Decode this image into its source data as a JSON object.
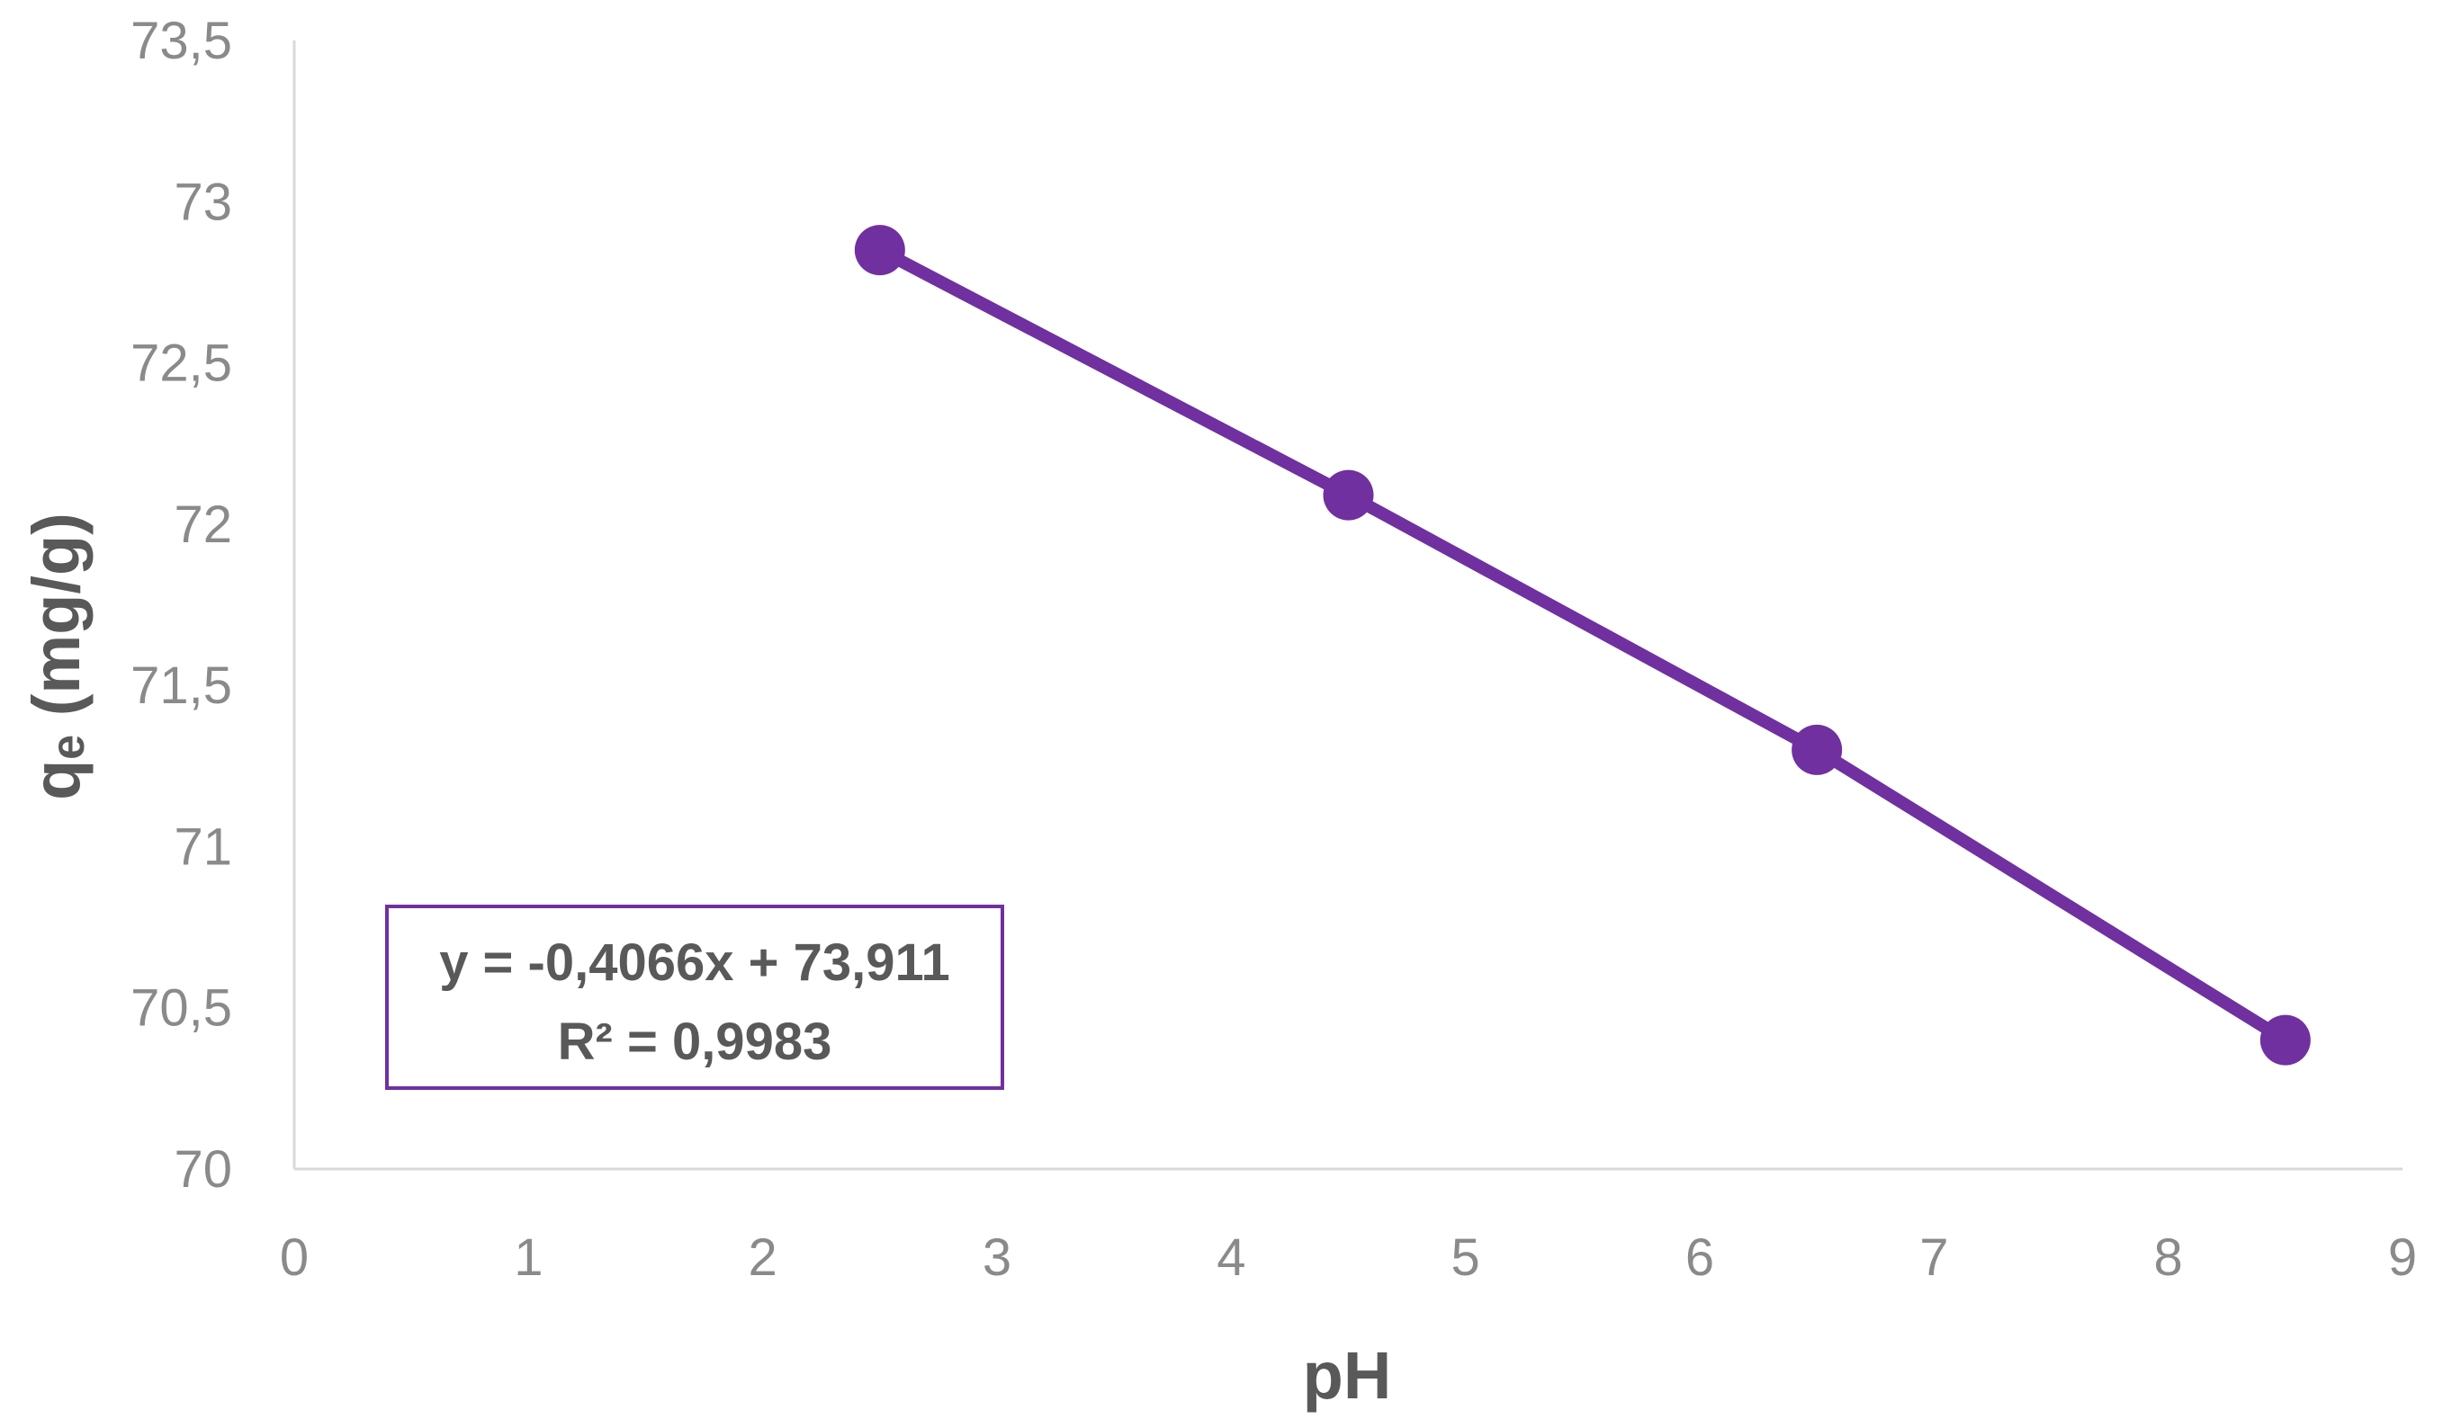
{
  "chart_data": {
    "type": "scatter",
    "title": "",
    "xlabel": "pH",
    "ylabel": "qₑ (mg/g)",
    "xlim": [
      0,
      9
    ],
    "ylim": [
      70,
      73.5
    ],
    "x_ticks": [
      0,
      1,
      2,
      3,
      4,
      5,
      6,
      7,
      8,
      9
    ],
    "y_ticks": [
      70,
      70.5,
      71,
      71.5,
      72,
      72.5,
      73,
      73.5
    ],
    "x_tick_labels": [
      "0",
      "1",
      "2",
      "3",
      "4",
      "5",
      "6",
      "7",
      "8",
      "9"
    ],
    "y_tick_labels": [
      "70",
      "70,5",
      "71",
      "71,5",
      "72",
      "72,5",
      "73",
      "73,5"
    ],
    "grid": false,
    "legend": "none",
    "series": [
      {
        "x": [
          2.5,
          4.5,
          6.5,
          8.5
        ],
        "y": [
          72.85,
          72.09,
          71.3,
          70.4
        ],
        "color": "#7030a0"
      }
    ],
    "trendline": {
      "type": "linear",
      "slope": -0.4066,
      "intercept": 73.911,
      "equation": "y = -0,4066x + 73,911",
      "r_squared": "R² = 0,9983",
      "box_color": "#7030a0"
    },
    "axis_color": "#d9d9d9"
  }
}
